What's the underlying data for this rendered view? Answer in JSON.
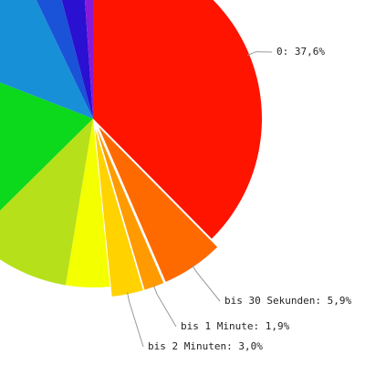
{
  "chart_data": {
    "type": "pie",
    "value_labels": [
      "0: 37,6%",
      "bis 30 Sekunden: 5,9%",
      "bis 1 Minute: 1,9%",
      "bis 2 Minuten: 3,0%",
      null,
      null,
      null,
      null,
      null,
      null,
      null
    ],
    "values": [
      37.6,
      5.9,
      1.9,
      3.0,
      4.2,
      10.0,
      18.3,
      12.0,
      3.0,
      3.0,
      1.1
    ],
    "colors": [
      "#ff1400",
      "#ff6a00",
      "#ff9a00",
      "#ffd200",
      "#f4ff00",
      "#b6e01a",
      "#0cd81c",
      "#1890d8",
      "#1a52d8",
      "#2a10d0",
      "#8a1ad8"
    ],
    "exploded": [
      false,
      true,
      true,
      true,
      false,
      false,
      false,
      false,
      false,
      false,
      false
    ]
  }
}
